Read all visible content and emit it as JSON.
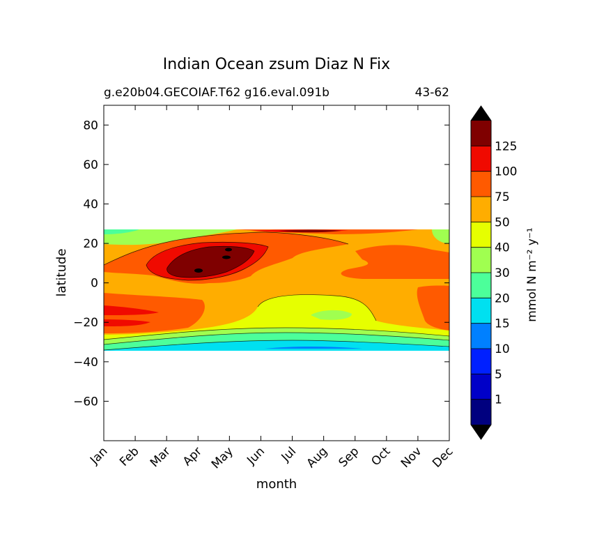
{
  "chart_data": {
    "type": "contour",
    "title": "Indian Ocean zsum Diaz N Fix",
    "subtitle_left": "g.e20b04.GECOIAF.T62 g16.eval.091b",
    "subtitle_right": "43-62",
    "xlabel": "month",
    "ylabel": "latitude",
    "x_ticks": [
      "Jan",
      "Feb",
      "Mar",
      "Apr",
      "May",
      "Jun",
      "Jul",
      "Aug",
      "Sep",
      "Oct",
      "Nov",
      "Dec"
    ],
    "y_ticks": [
      80,
      60,
      40,
      20,
      0,
      -20,
      -40,
      -60
    ],
    "ylim": [
      -80,
      90
    ],
    "data_lat_range": [
      -35,
      27
    ],
    "colorbar": {
      "label": "mmol N m⁻² y⁻¹",
      "tick_labels": [
        "1",
        "5",
        "10",
        "15",
        "20",
        "30",
        "40",
        "50",
        "75",
        "100",
        "125"
      ],
      "colors": [
        "#00007f",
        "#0000c8",
        "#0020ff",
        "#0080ff",
        "#00e0f0",
        "#4cff9a",
        "#a0ff50",
        "#e6ff00",
        "#ffad00",
        "#ff5a00",
        "#f00a00",
        "#7f0000"
      ],
      "extend": "both",
      "over_color": "#000000",
      "under_color": "#000000"
    },
    "bands": [
      {
        "level_index": 4,
        "lat_south": -34,
        "lat_north": -31,
        "note": "southern edge"
      },
      {
        "level_index": 5,
        "lat_south": -31,
        "lat_north": -28
      },
      {
        "level_index": 7,
        "lat_south": -28,
        "lat_north": -22
      },
      {
        "level_index": 8,
        "lat_south": -22,
        "lat_north": -3
      },
      {
        "level_index": 9,
        "lat_south": -3,
        "lat_north": 20
      },
      {
        "level_index": 10,
        "lat_south": 5,
        "lat_north": 18
      },
      {
        "level_index": 11,
        "lat_south": 2,
        "lat_north": 16
      },
      {
        "level_index": 6,
        "lat_south": 20,
        "lat_north": 27
      }
    ]
  }
}
